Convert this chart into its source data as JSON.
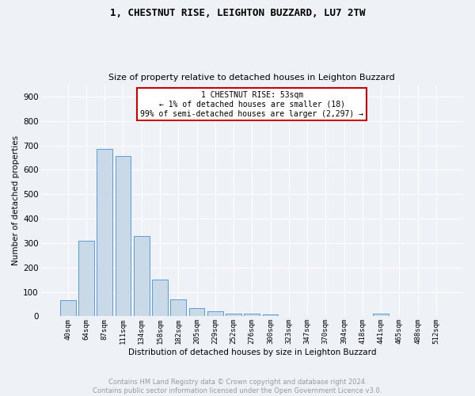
{
  "title": "1, CHESTNUT RISE, LEIGHTON BUZZARD, LU7 2TW",
  "subtitle": "Size of property relative to detached houses in Leighton Buzzard",
  "xlabel": "Distribution of detached houses by size in Leighton Buzzard",
  "ylabel": "Number of detached properties",
  "bar_labels": [
    "40sqm",
    "64sqm",
    "87sqm",
    "111sqm",
    "134sqm",
    "158sqm",
    "182sqm",
    "205sqm",
    "229sqm",
    "252sqm",
    "276sqm",
    "300sqm",
    "323sqm",
    "347sqm",
    "370sqm",
    "394sqm",
    "418sqm",
    "441sqm",
    "465sqm",
    "488sqm",
    "512sqm"
  ],
  "bar_values": [
    65,
    310,
    685,
    655,
    330,
    152,
    68,
    33,
    20,
    12,
    10,
    8,
    0,
    0,
    0,
    0,
    0,
    10,
    0,
    0,
    0
  ],
  "bar_color": "#c9d9e8",
  "bar_edge_color": "#5b9bd5",
  "annotation_text": "1 CHESTNUT RISE: 53sqm\n← 1% of detached houses are smaller (18)\n99% of semi-detached houses are larger (2,297) →",
  "annotation_box_color": "#ffffff",
  "annotation_box_edge_color": "#cc0000",
  "footer_line1": "Contains HM Land Registry data © Crown copyright and database right 2024.",
  "footer_line2": "Contains public sector information licensed under the Open Government Licence v3.0.",
  "background_color": "#eef2f7",
  "plot_bg_color": "#eef2f7",
  "ylim": [
    0,
    950
  ],
  "yticks": [
    0,
    100,
    200,
    300,
    400,
    500,
    600,
    700,
    800,
    900
  ]
}
